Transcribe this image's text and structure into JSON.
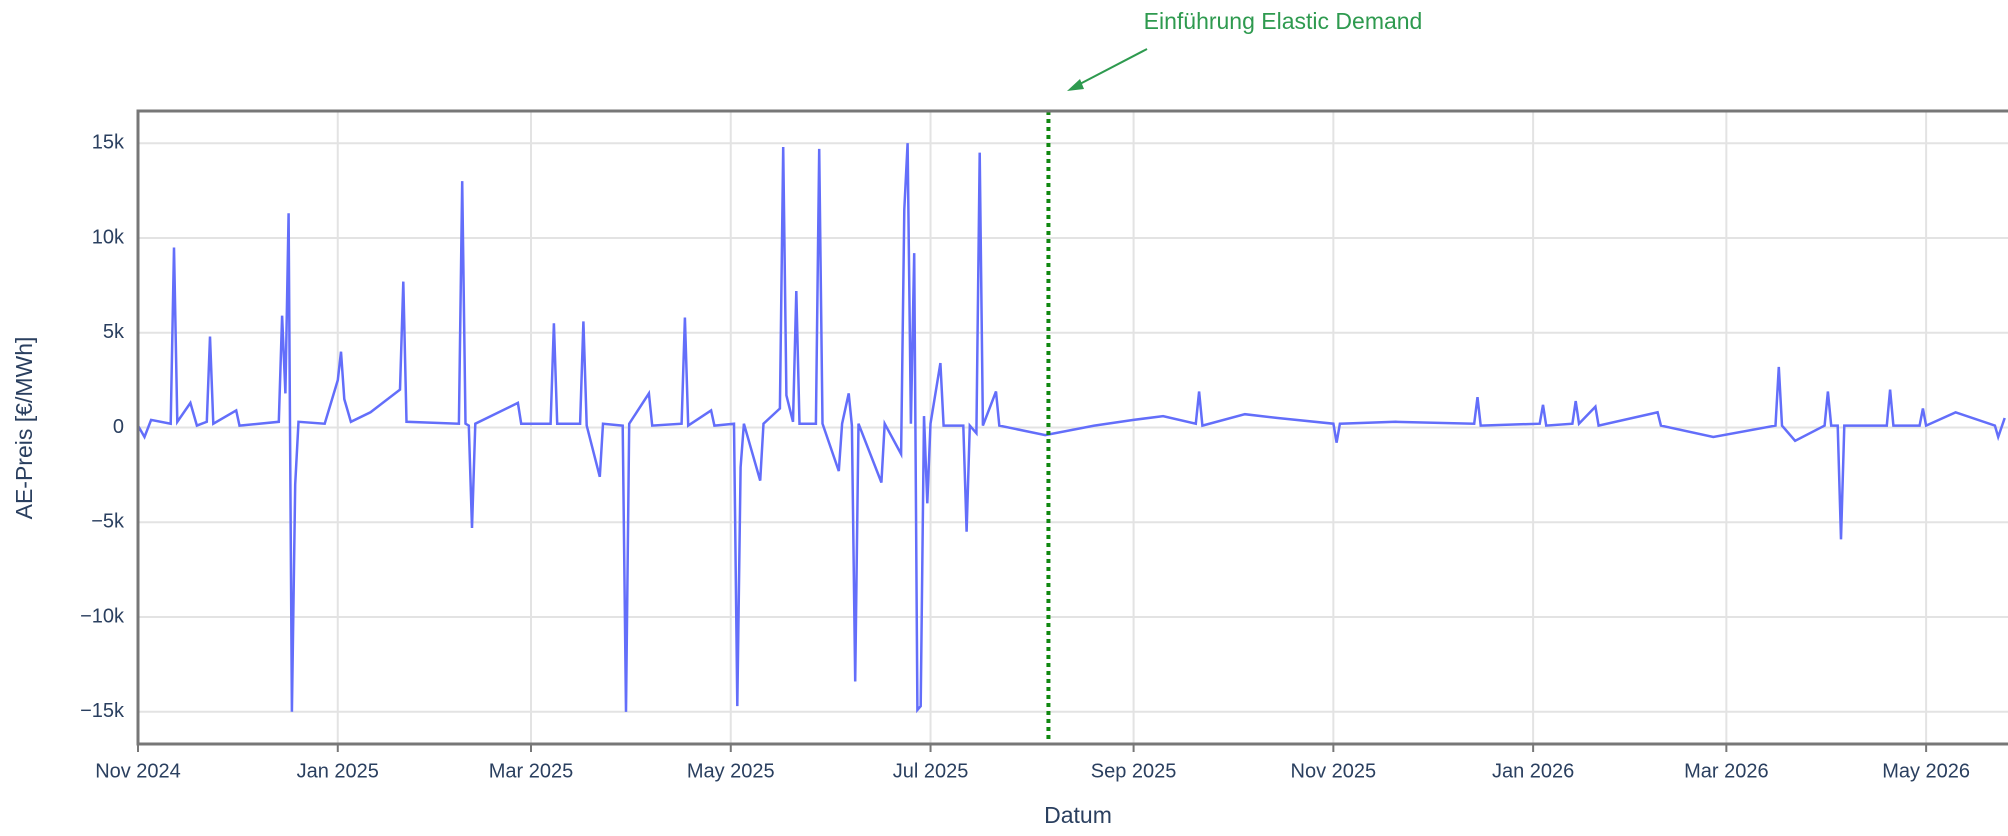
{
  "chart_data": {
    "type": "line",
    "xlabel": "Datum",
    "ylabel": "AE-Preis [€/MWh]",
    "annotation": {
      "text": "Einführung Elastic Demand",
      "color": "#2e9a4f"
    },
    "vline": {
      "x": "2025-08-06",
      "color": "#118811",
      "style": "dotted"
    },
    "xlim": [
      "2024-11-01",
      "2026-05-26"
    ],
    "ylim": [
      -16700,
      16700
    ],
    "grid": true,
    "xticks": [
      {
        "value": "2024-11",
        "label": "Nov 2024"
      },
      {
        "value": "2025-01",
        "label": "Jan 2025"
      },
      {
        "value": "2025-03",
        "label": "Mar 2025"
      },
      {
        "value": "2025-05",
        "label": "May 2025"
      },
      {
        "value": "2025-07",
        "label": "Jul 2025"
      },
      {
        "value": "2025-09",
        "label": "Sep 2025"
      },
      {
        "value": "2025-11",
        "label": "Nov 2025"
      },
      {
        "value": "2026-01",
        "label": "Jan 2026"
      },
      {
        "value": "2026-03",
        "label": "Mar 2026"
      },
      {
        "value": "2026-05",
        "label": "May 2026"
      }
    ],
    "yticks": [
      {
        "value": 15000,
        "label": "15k"
      },
      {
        "value": 10000,
        "label": "10k"
      },
      {
        "value": 5000,
        "label": "5k"
      },
      0,
      {
        "value": -5000,
        "label": "−5k"
      },
      {
        "value": -10000,
        "label": "−10k"
      },
      {
        "value": -15000,
        "label": "−15k"
      }
    ],
    "series": [
      {
        "name": "AE-Preis",
        "color": "#636efa",
        "x": [
          "2024-11-01",
          "2024-11-03",
          "2024-11-05",
          "2024-11-11",
          "2024-11-12",
          "2024-11-13",
          "2024-11-17",
          "2024-11-19",
          "2024-11-22",
          "2024-11-23",
          "2024-11-24",
          "2024-12-01",
          "2024-12-02",
          "2024-12-14",
          "2024-12-15",
          "2024-12-16",
          "2024-12-17",
          "2024-12-18",
          "2024-12-19",
          "2024-12-20",
          "2024-12-28",
          "2025-01-01",
          "2025-01-02",
          "2025-01-03",
          "2025-01-05",
          "2025-01-11",
          "2025-01-20",
          "2025-01-21",
          "2025-01-22",
          "2025-02-07",
          "2025-02-08",
          "2025-02-09",
          "2025-02-10",
          "2025-02-11",
          "2025-02-12",
          "2025-02-25",
          "2025-02-26",
          "2025-03-07",
          "2025-03-08",
          "2025-03-09",
          "2025-03-16",
          "2025-03-17",
          "2025-03-18",
          "2025-03-22",
          "2025-03-23",
          "2025-03-29",
          "2025-03-30",
          "2025-03-31",
          "2025-04-06",
          "2025-04-07",
          "2025-04-16",
          "2025-04-17",
          "2025-04-18",
          "2025-04-25",
          "2025-04-26",
          "2025-05-02",
          "2025-05-03",
          "2025-05-04",
          "2025-05-05",
          "2025-05-10",
          "2025-05-11",
          "2025-05-16",
          "2025-05-17",
          "2025-05-18",
          "2025-05-20",
          "2025-05-21",
          "2025-05-22",
          "2025-05-27",
          "2025-05-28",
          "2025-05-29",
          "2025-06-03",
          "2025-06-04",
          "2025-06-06",
          "2025-06-07",
          "2025-06-08",
          "2025-06-09",
          "2025-06-16",
          "2025-06-17",
          "2025-06-22",
          "2025-06-23",
          "2025-06-24",
          "2025-06-25",
          "2025-06-26",
          "2025-06-27",
          "2025-06-28",
          "2025-06-29",
          "2025-06-30",
          "2025-07-01",
          "2025-07-04",
          "2025-07-05",
          "2025-07-11",
          "2025-07-12",
          "2025-07-13",
          "2025-07-15",
          "2025-07-16",
          "2025-07-17",
          "2025-07-21",
          "2025-07-22",
          "2025-08-05",
          "2025-08-20",
          "2025-09-01",
          "2025-09-10",
          "2025-09-20",
          "2025-09-21",
          "2025-09-22",
          "2025-10-05",
          "2025-10-15",
          "2025-11-01",
          "2025-11-02",
          "2025-11-03",
          "2025-11-20",
          "2025-12-14",
          "2025-12-15",
          "2025-12-16",
          "2026-01-03",
          "2026-01-04",
          "2026-01-05",
          "2026-01-13",
          "2026-01-14",
          "2026-01-15",
          "2026-01-20",
          "2026-01-21",
          "2026-02-08",
          "2026-02-09",
          "2026-02-25",
          "2026-03-16",
          "2026-03-17",
          "2026-03-18",
          "2026-03-22",
          "2026-03-31",
          "2026-04-01",
          "2026-04-02",
          "2026-04-04",
          "2026-04-05",
          "2026-04-06",
          "2026-04-19",
          "2026-04-20",
          "2026-04-21",
          "2026-04-29",
          "2026-04-30",
          "2026-05-01",
          "2026-05-10",
          "2026-05-22",
          "2026-05-23",
          "2026-05-25"
        ],
        "values": [
          100,
          -500,
          400,
          200,
          9500,
          300,
          1300,
          100,
          300,
          4800,
          200,
          900,
          100,
          300,
          5900,
          1800,
          11300,
          -15000,
          -3000,
          300,
          200,
          2500,
          4000,
          1500,
          300,
          800,
          2000,
          7700,
          300,
          200,
          13000,
          200,
          100,
          -5300,
          200,
          1300,
          200,
          200,
          5500,
          200,
          200,
          5600,
          100,
          -2600,
          200,
          100,
          -15000,
          200,
          1800,
          100,
          200,
          5800,
          100,
          900,
          100,
          200,
          -14700,
          -2100,
          200,
          -2800,
          200,
          1000,
          14800,
          1700,
          300,
          7200,
          200,
          200,
          14700,
          200,
          -2300,
          200,
          1800,
          100,
          -13400,
          200,
          -2900,
          200,
          -1400,
          11500,
          15000,
          200,
          9200,
          -14900,
          -14700,
          600,
          -4000,
          200,
          3400,
          100,
          100,
          -5500,
          100,
          -300,
          14500,
          100,
          1900,
          100,
          -400,
          100,
          400,
          600,
          200,
          1900,
          100,
          700,
          500,
          200,
          -800,
          200,
          300,
          200,
          1600,
          100,
          200,
          1200,
          100,
          200,
          1400,
          200,
          1100,
          100,
          800,
          100,
          -500,
          100,
          3200,
          100,
          -700,
          100,
          1900,
          100,
          100,
          -5900,
          100,
          100,
          2000,
          100,
          100,
          1000,
          100,
          800,
          100,
          -500,
          500
        ]
      }
    ]
  }
}
